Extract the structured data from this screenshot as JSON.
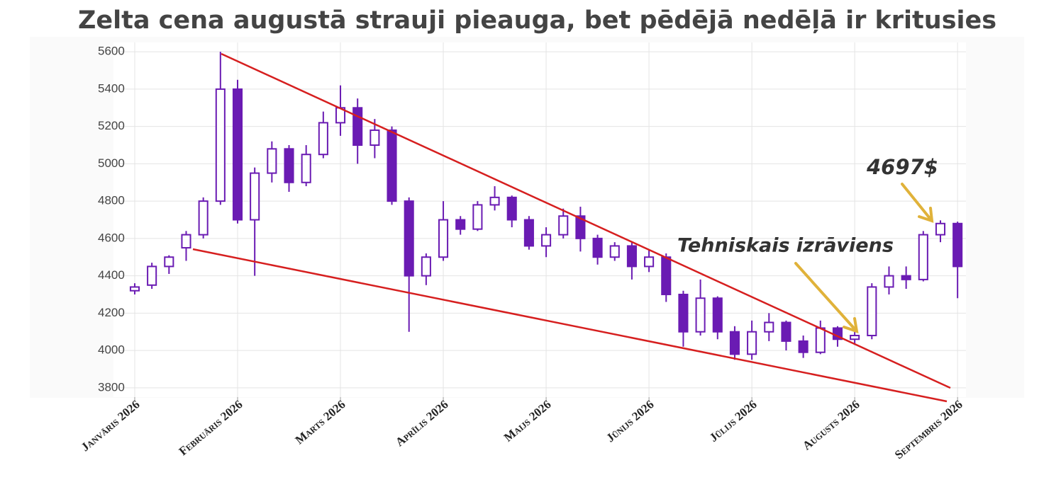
{
  "chart_data": {
    "type": "candlestick",
    "title": "Zelta cena augustā strauji pieauga, bet pēdējā nedēļā ir kritusies",
    "annotations": [
      "Tehniskais izrāviens",
      "4697$"
    ],
    "color": "#6a1bb3",
    "grid": true,
    "xlim": [
      -1.24,
      48.49
    ],
    "xticks": [
      {
        "value": 0,
        "label": "Janvāris 2026"
      },
      {
        "value": 6,
        "label": "Februāris 2026"
      },
      {
        "value": 12,
        "label": "Marts 2026"
      },
      {
        "value": 18,
        "label": "Aprīlis 2026"
      },
      {
        "value": 24,
        "label": "Maijs 2026"
      },
      {
        "value": 30,
        "label": "Jūnijs 2026"
      },
      {
        "value": 36,
        "label": "Jūlijs 2026"
      },
      {
        "value": 42,
        "label": "Augusts 2026"
      },
      {
        "value": 48,
        "label": "Septembris 2026"
      }
    ],
    "ylim": [
      3750,
      5650
    ],
    "yticks": [
      3800,
      4000,
      4200,
      4400,
      4600,
      4800,
      5000,
      5200,
      5400,
      5600
    ],
    "open": [
      4320,
      4350,
      4450,
      4550,
      4620,
      4800,
      5400,
      4700,
      4950,
      5080,
      4900,
      5050,
      5220,
      5300,
      5100,
      5180,
      4800,
      4400,
      4500,
      4700,
      4650,
      4780,
      4820,
      4700,
      4560,
      4620,
      4720,
      4600,
      4500,
      4560,
      4450,
      4500,
      4300,
      4100,
      4280,
      4100,
      3980,
      4100,
      4150,
      4050,
      3990,
      4120,
      4060,
      4080,
      4340,
      4400,
      4380,
      4620,
      4680
    ],
    "high": [
      4360,
      4470,
      4510,
      4640,
      4820,
      5600,
      5450,
      4980,
      5120,
      5100,
      5100,
      5280,
      5420,
      5350,
      5240,
      5200,
      4820,
      4520,
      4800,
      4720,
      4800,
      4880,
      4830,
      4720,
      4660,
      4760,
      4770,
      4620,
      4580,
      4580,
      4540,
      4520,
      4320,
      4380,
      4290,
      4130,
      4160,
      4200,
      4160,
      4080,
      4160,
      4130,
      4110,
      4360,
      4450,
      4450,
      4640,
      4697,
      4690
    ],
    "low": [
      4300,
      4330,
      4410,
      4480,
      4600,
      4780,
      4680,
      4400,
      4900,
      4850,
      4880,
      5030,
      5150,
      5000,
      5030,
      4780,
      4100,
      4350,
      4480,
      4620,
      4640,
      4750,
      4660,
      4540,
      4500,
      4600,
      4530,
      4460,
      4480,
      4380,
      4420,
      4260,
      4020,
      4080,
      4060,
      3950,
      3950,
      4050,
      4000,
      3960,
      3980,
      4020,
      4030,
      4060,
      4300,
      4330,
      4370,
      4580,
      4280
    ],
    "close": [
      4340,
      4450,
      4500,
      4620,
      4800,
      5400,
      4700,
      4950,
      5080,
      4900,
      5050,
      5220,
      5300,
      5100,
      5180,
      4800,
      4400,
      4500,
      4700,
      4650,
      4780,
      4820,
      4700,
      4560,
      4620,
      4720,
      4600,
      4500,
      4560,
      4450,
      4500,
      4300,
      4100,
      4280,
      4100,
      3980,
      4100,
      4150,
      4050,
      3990,
      4120,
      4060,
      4080,
      4340,
      4400,
      4380,
      4620,
      4680,
      4450
    ]
  }
}
